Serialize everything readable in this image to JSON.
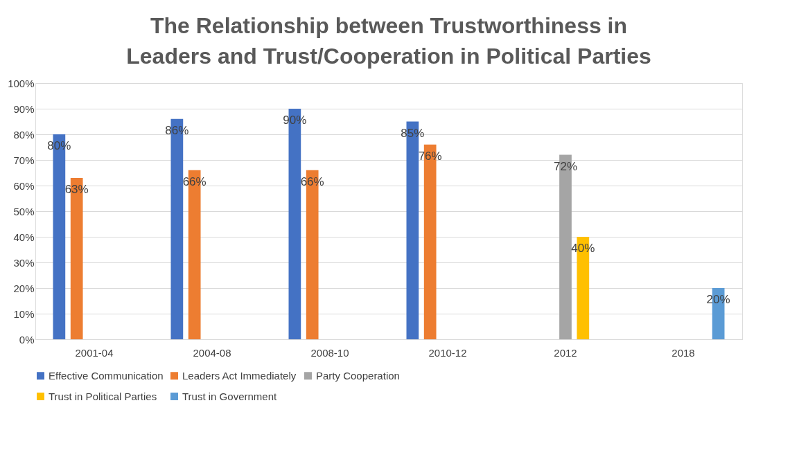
{
  "chart_data": {
    "type": "bar",
    "title": "The Relationship between Trustworthiness in\nLeaders and Trust/Cooperation in Political Parties",
    "categories": [
      "2001-04",
      "2004-08",
      "2008-10",
      "2010-12",
      "2012",
      "2018"
    ],
    "series": [
      {
        "name": "Effective Communication",
        "color": "#4472c4",
        "values": [
          80,
          86,
          90,
          85,
          null,
          null
        ],
        "value_labels": [
          "80%",
          "86%",
          "90%",
          "85%",
          null,
          null
        ]
      },
      {
        "name": "Leaders Act Immediately",
        "color": "#ed7d31",
        "values": [
          63,
          66,
          66,
          76,
          null,
          null
        ],
        "value_labels": [
          "63%",
          "66%",
          "66%",
          "76%",
          null,
          null
        ]
      },
      {
        "name": "Party Cooperation",
        "color": "#a5a5a5",
        "values": [
          null,
          null,
          null,
          null,
          72,
          null
        ],
        "value_labels": [
          null,
          null,
          null,
          null,
          "72%",
          null
        ]
      },
      {
        "name": "Trust in Political Parties",
        "color": "#ffc000",
        "values": [
          null,
          null,
          null,
          null,
          40,
          null
        ],
        "value_labels": [
          null,
          null,
          null,
          null,
          "40%",
          null
        ]
      },
      {
        "name": "Trust in Government",
        "color": "#5b9bd5",
        "values": [
          null,
          null,
          null,
          null,
          null,
          20
        ],
        "value_labels": [
          null,
          null,
          null,
          null,
          null,
          "20%"
        ]
      }
    ],
    "ylim": [
      0,
      100
    ],
    "yticks": [
      {
        "value": 0,
        "label": "0%"
      },
      {
        "value": 10,
        "label": "10%"
      },
      {
        "value": 20,
        "label": "20%"
      },
      {
        "value": 30,
        "label": "30%"
      },
      {
        "value": 40,
        "label": "40%"
      },
      {
        "value": 50,
        "label": "50%"
      },
      {
        "value": 60,
        "label": "60%"
      },
      {
        "value": 70,
        "label": "70%"
      },
      {
        "value": 80,
        "label": "80%"
      },
      {
        "value": 90,
        "label": "90%"
      },
      {
        "value": 100,
        "label": "100%"
      }
    ],
    "grid": "y",
    "legend": "bottom"
  }
}
